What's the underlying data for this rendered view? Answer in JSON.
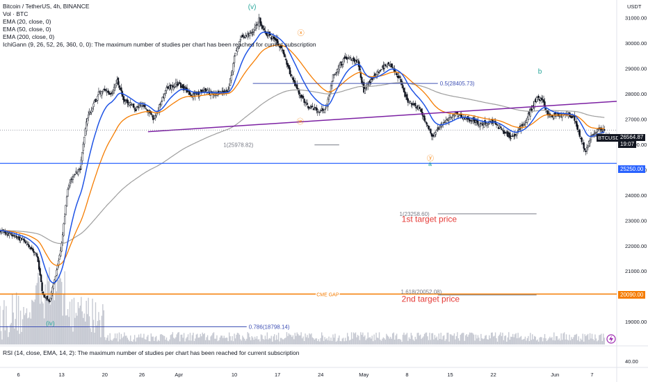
{
  "header": {
    "symbol_line": "Bitcoin / TetherUS, 4h, BINANCE",
    "indicators": [
      "Vol · BTC",
      "EMA (20, close, 0)",
      "EMA (50, close, 0)",
      "EMA (200, close, 0)",
      "IchiGann (9, 26, 52, 26, 360, 0, 0): The maximum number of studies per chart has been reached for current subscription"
    ],
    "rsi_line": "RSI (14, close, EMA, 14, 2): The maximum number of studies per chart has been reached for current subscription"
  },
  "price_axis": {
    "currency": "USDT",
    "ticks": [
      "31000.00",
      "30000.00",
      "29000.00",
      "28000.00",
      "27000.00",
      "26000.00",
      "25000.00",
      "24000.00",
      "23000.00",
      "22000.00",
      "21000.00",
      "19000.00"
    ],
    "rsi_tick": "40.00",
    "last_price": "26564.87",
    "countdown": "19:07",
    "ticker": "BTCUSDT",
    "level_blue": "25250.00",
    "level_orange": "20090.00"
  },
  "time_axis": {
    "labels": [
      "6",
      "13",
      "20",
      "26",
      "Apr",
      "10",
      "17",
      "24",
      "May",
      "8",
      "15",
      "22",
      "Jun",
      "7"
    ]
  },
  "annotations": {
    "wave_v": "(v)",
    "wave_iv": "(iv)",
    "circle_x": "ⓧ",
    "circle_w": "ⓦ",
    "circle_y": "ⓨ",
    "wave_a": "a",
    "wave_b": "b",
    "fib_050": "0.5(28405.73)",
    "fib_1_upper": "1(25978.82)",
    "fib_1_right": "1(2631",
    "fib_1_mid": "1(23258.60)",
    "target1": "1st target price",
    "cme_gap": "CME GAP",
    "fib_1618": "1.618(20052.08)",
    "target2": "2nd target price",
    "fib_0786": "0.786(18798.14)"
  },
  "colors": {
    "ema20": "#1e53e5",
    "ema50": "#f57c00",
    "ema200": "#9e9e9e",
    "trendline": "#7b1fa2",
    "level_blue": "#2962ff",
    "level_orange": "#f57c00",
    "fib_blue": "#3f51b5",
    "target_red": "#e53935",
    "wave_green": "#26a69a",
    "candle": "#131722"
  },
  "chart_data": {
    "type": "line",
    "title": "Bitcoin / TetherUS, 4h, BINANCE",
    "x_unit": "date",
    "x_start": "2023-03-03",
    "x_end": "2023-06-11",
    "ylim": [
      18100,
      31700
    ],
    "price_path": [
      [
        "2023-03-03",
        22600
      ],
      [
        "2023-03-05",
        22400
      ],
      [
        "2023-03-07",
        22200
      ],
      [
        "2023-03-09",
        21600
      ],
      [
        "2023-03-10",
        20000
      ],
      [
        "2023-03-11",
        19800
      ],
      [
        "2023-03-12",
        20800
      ],
      [
        "2023-03-13",
        22100
      ],
      [
        "2023-03-14",
        24300
      ],
      [
        "2023-03-15",
        24800
      ],
      [
        "2023-03-16",
        25000
      ],
      [
        "2023-03-17",
        26900
      ],
      [
        "2023-03-18",
        27500
      ],
      [
        "2023-03-19",
        28000
      ],
      [
        "2023-03-20",
        28100
      ],
      [
        "2023-03-21",
        27900
      ],
      [
        "2023-03-22",
        28500
      ],
      [
        "2023-03-23",
        27800
      ],
      [
        "2023-03-24",
        27600
      ],
      [
        "2023-03-25",
        27400
      ],
      [
        "2023-03-26",
        27600
      ],
      [
        "2023-03-28",
        27000
      ],
      [
        "2023-03-30",
        28200
      ],
      [
        "2023-04-01",
        28400
      ],
      [
        "2023-04-03",
        27900
      ],
      [
        "2023-04-05",
        28100
      ],
      [
        "2023-04-07",
        28000
      ],
      [
        "2023-04-09",
        28100
      ],
      [
        "2023-04-10",
        29400
      ],
      [
        "2023-04-11",
        30200
      ],
      [
        "2023-04-13",
        30400
      ],
      [
        "2023-04-14",
        30900
      ],
      [
        "2023-04-15",
        30400
      ],
      [
        "2023-04-17",
        30000
      ],
      [
        "2023-04-18",
        29600
      ],
      [
        "2023-04-19",
        28800
      ],
      [
        "2023-04-20",
        28300
      ],
      [
        "2023-04-21",
        27800
      ],
      [
        "2023-04-22",
        27500
      ],
      [
        "2023-04-24",
        27300
      ],
      [
        "2023-04-25",
        27500
      ],
      [
        "2023-04-26",
        28700
      ],
      [
        "2023-04-27",
        29100
      ],
      [
        "2023-04-28",
        29400
      ],
      [
        "2023-04-30",
        29300
      ],
      [
        "2023-05-01",
        28100
      ],
      [
        "2023-05-02",
        28500
      ],
      [
        "2023-05-04",
        29000
      ],
      [
        "2023-05-05",
        29200
      ],
      [
        "2023-05-06",
        28900
      ],
      [
        "2023-05-07",
        28500
      ],
      [
        "2023-05-08",
        27700
      ],
      [
        "2023-05-09",
        27600
      ],
      [
        "2023-05-10",
        27400
      ],
      [
        "2023-05-11",
        26900
      ],
      [
        "2023-05-12",
        26300
      ],
      [
        "2023-05-14",
        26900
      ],
      [
        "2023-05-16",
        27200
      ],
      [
        "2023-05-18",
        27000
      ],
      [
        "2023-05-20",
        26800
      ],
      [
        "2023-05-22",
        26900
      ],
      [
        "2023-05-24",
        26400
      ],
      [
        "2023-05-25",
        26300
      ],
      [
        "2023-05-27",
        26800
      ],
      [
        "2023-05-29",
        27800
      ],
      [
        "2023-05-30",
        27700
      ],
      [
        "2023-05-31",
        27100
      ],
      [
        "2023-06-02",
        27200
      ],
      [
        "2023-06-04",
        27100
      ],
      [
        "2023-06-05",
        26300
      ],
      [
        "2023-06-06",
        25700
      ],
      [
        "2023-06-07",
        26400
      ],
      [
        "2023-06-08",
        26600
      ],
      [
        "2023-06-09",
        26564.87
      ]
    ],
    "trendline": [
      [
        "2023-03-27",
        26500
      ],
      [
        "2023-06-11",
        27700
      ]
    ],
    "levels": [
      {
        "price": 25250,
        "label": "25250.00"
      },
      {
        "price": 20090,
        "label": "20090.00"
      }
    ],
    "fib_levels": [
      {
        "price": 28405.73,
        "label": "0.5(28405.73)"
      },
      {
        "price": 25978.82,
        "label": "1(25978.82)"
      },
      {
        "price": 23258.6,
        "label": "1(23258.60)"
      },
      {
        "price": 20052.08,
        "label": "1.618(20052.08)"
      },
      {
        "price": 18798.14,
        "label": "0.786(18798.14)"
      }
    ],
    "current_price": 26564.87
  }
}
